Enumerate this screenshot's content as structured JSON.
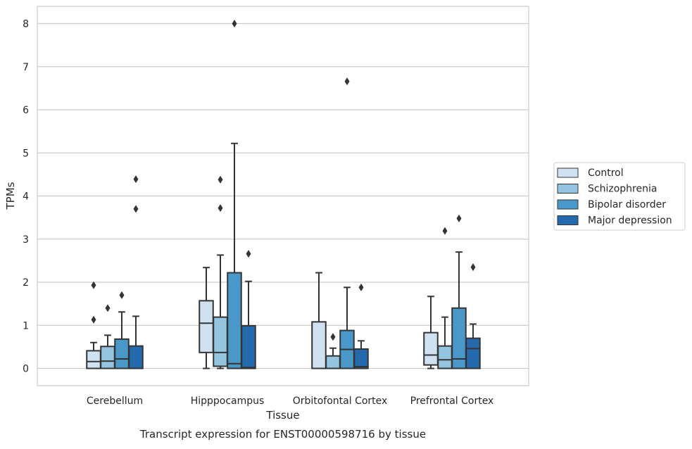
{
  "chart_data": {
    "type": "boxplot",
    "caption": "Transcript expression for ENST00000598716 by tissue",
    "xlabel": "Tissue",
    "ylabel": "TPMs",
    "ylim": [
      -0.4,
      8.4
    ],
    "yticks": [
      0,
      1,
      2,
      3,
      4,
      5,
      6,
      7,
      8
    ],
    "grid": true,
    "legend_position": "right",
    "categories": [
      "Cerebellum",
      "Hipppocampus",
      "Orbitofontal Cortex",
      "Prefrontal Cortex"
    ],
    "series": [
      {
        "name": "Control",
        "color": "#d0e1f2",
        "boxes": [
          {
            "whislo": 0.0,
            "q1": 0.0,
            "med": 0.16,
            "q3": 0.41,
            "whishi": 0.6,
            "fliers": [
              1.13,
              1.93
            ]
          },
          {
            "whislo": 0.0,
            "q1": 0.37,
            "med": 1.05,
            "q3": 1.57,
            "whislo_note": "",
            "whishi": 2.34,
            "fliers": []
          },
          {
            "whislo": 0.0,
            "q1": 0.0,
            "med": 0.0,
            "q3": 1.08,
            "whishi": 2.22,
            "fliers": []
          },
          {
            "whislo": 0.0,
            "q1": 0.08,
            "med": 0.31,
            "q3": 0.83,
            "whishi": 1.67,
            "fliers": []
          }
        ]
      },
      {
        "name": "Schizophrenia",
        "color": "#94c4df",
        "boxes": [
          {
            "whislo": 0.0,
            "q1": 0.0,
            "med": 0.17,
            "q3": 0.51,
            "whishi": 0.77,
            "fliers": [
              1.4
            ]
          },
          {
            "whislo": 0.0,
            "q1": 0.05,
            "med": 0.37,
            "q3": 1.19,
            "whishi": 2.63,
            "fliers": [
              3.72,
              4.38
            ]
          },
          {
            "whislo": 0.0,
            "q1": 0.0,
            "med": 0.0,
            "q3": 0.29,
            "whishi": 0.47,
            "fliers": [
              0.73
            ]
          },
          {
            "whislo": 0.0,
            "q1": 0.0,
            "med": 0.2,
            "q3": 0.52,
            "whishi": 1.19,
            "fliers": [
              3.19
            ]
          }
        ]
      },
      {
        "name": "Bipolar disorder",
        "color": "#4a98c9",
        "boxes": [
          {
            "whislo": 0.0,
            "q1": 0.0,
            "med": 0.22,
            "q3": 0.68,
            "whishi": 1.31,
            "fliers": [
              1.7
            ]
          },
          {
            "whislo": 0.0,
            "q1": 0.0,
            "med": 0.11,
            "q3": 2.22,
            "whishi": 5.22,
            "fliers": [
              8.0
            ]
          },
          {
            "whislo": 0.0,
            "q1": 0.0,
            "med": 0.44,
            "q3": 0.88,
            "whishi": 1.88,
            "fliers": [
              6.66
            ]
          },
          {
            "whislo": 0.0,
            "q1": 0.0,
            "med": 0.22,
            "q3": 1.4,
            "whishi": 2.7,
            "fliers": [
              3.48
            ]
          }
        ]
      },
      {
        "name": "Major depression",
        "color": "#2369ac",
        "boxes": [
          {
            "whislo": 0.0,
            "q1": 0.0,
            "med": 0.0,
            "q3": 0.52,
            "whishi": 1.21,
            "fliers": [
              3.7,
              4.39
            ]
          },
          {
            "whislo": 0.0,
            "q1": 0.0,
            "med": 0.02,
            "q3": 0.99,
            "whishi": 2.02,
            "fliers": [
              2.66
            ]
          },
          {
            "whislo": 0.0,
            "q1": 0.0,
            "med": 0.04,
            "q3": 0.45,
            "whishi": 0.64,
            "fliers": [
              1.88
            ]
          },
          {
            "whislo": 0.0,
            "q1": 0.0,
            "med": 0.46,
            "q3": 0.7,
            "whishi": 1.03,
            "fliers": [
              2.35
            ]
          }
        ]
      }
    ]
  }
}
